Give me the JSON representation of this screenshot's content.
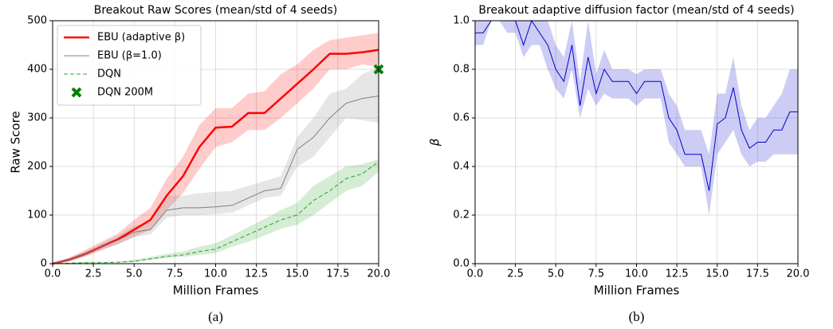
{
  "chart_data": [
    {
      "type": "line",
      "title": "Breakout Raw Scores (mean/std of 4 seeds)",
      "xlabel": "Million Frames",
      "ylabel": "Raw Score",
      "caption": "(a)",
      "x": [
        0,
        1,
        2,
        3,
        4,
        5,
        6,
        7,
        8,
        9,
        10,
        11,
        12,
        13,
        14,
        15,
        16,
        17,
        18,
        19,
        20
      ],
      "series": [
        {
          "name": "EBU (adaptive β)",
          "color": "#ff0000",
          "linewidth": 2.5,
          "linestyle": "solid",
          "values": [
            0,
            8,
            20,
            35,
            50,
            70,
            90,
            140,
            180,
            240,
            280,
            282,
            310,
            310,
            340,
            370,
            400,
            432,
            432,
            435,
            440
          ],
          "lower": [
            0,
            5,
            15,
            28,
            40,
            55,
            70,
            110,
            145,
            195,
            240,
            250,
            275,
            275,
            300,
            330,
            360,
            400,
            400,
            410,
            405
          ],
          "upper": [
            0,
            12,
            28,
            45,
            62,
            90,
            115,
            175,
            220,
            285,
            320,
            320,
            350,
            355,
            390,
            410,
            440,
            460,
            465,
            470,
            475
          ]
        },
        {
          "name": "EBU (β=1.0)",
          "color": "#808080",
          "linewidth": 1,
          "linestyle": "solid",
          "values": [
            0,
            8,
            20,
            35,
            48,
            65,
            70,
            110,
            115,
            115,
            117,
            120,
            135,
            150,
            155,
            235,
            260,
            300,
            330,
            340,
            345
          ],
          "lower": [
            0,
            5,
            15,
            28,
            40,
            55,
            60,
            95,
            100,
            100,
            102,
            105,
            120,
            135,
            140,
            200,
            220,
            260,
            300,
            295,
            290
          ],
          "upper": [
            0,
            12,
            25,
            42,
            58,
            78,
            85,
            140,
            140,
            145,
            148,
            150,
            160,
            170,
            180,
            260,
            300,
            350,
            360,
            390,
            405
          ]
        },
        {
          "name": "DQN",
          "color": "#2ca02c",
          "linewidth": 1,
          "linestyle": "dashed",
          "values": [
            0,
            1,
            2,
            2,
            3,
            5,
            10,
            15,
            18,
            25,
            30,
            45,
            60,
            75,
            90,
            100,
            130,
            150,
            175,
            185,
            210
          ],
          "lower": [
            0,
            0,
            1,
            1,
            2,
            3,
            7,
            12,
            14,
            18,
            22,
            35,
            45,
            58,
            72,
            80,
            100,
            125,
            150,
            160,
            190
          ],
          "upper": [
            0,
            2,
            3,
            3,
            4,
            8,
            14,
            20,
            25,
            35,
            42,
            58,
            75,
            92,
            110,
            125,
            160,
            180,
            200,
            205,
            215
          ]
        },
        {
          "name": "DQN 200M",
          "color": "#008000",
          "marker": "X",
          "x": [
            20
          ],
          "values": [
            400
          ]
        }
      ],
      "xlim": [
        0,
        20
      ],
      "ylim": [
        0,
        500
      ],
      "xticks": [
        {
          "value": 0,
          "label": "0.0"
        },
        2.5,
        {
          "value": 5,
          "label": "5.0"
        },
        7.5,
        {
          "value": 10,
          "label": "10.0"
        },
        12.5,
        {
          "value": 15,
          "label": "15.0"
        },
        17.5,
        {
          "value": 20,
          "label": "20.0"
        }
      ],
      "yticks": [
        0,
        100,
        200,
        300,
        400,
        500
      ],
      "grid": true,
      "legend": "upper left"
    },
    {
      "type": "line",
      "title": "Breakout adaptive diffusion factor (mean/std of 4 seeds)",
      "xlabel": "Million Frames",
      "ylabel": "β",
      "caption": "(b)",
      "x": [
        0,
        0.5,
        1,
        1.5,
        2,
        2.5,
        3,
        3.5,
        4,
        4.5,
        5,
        5.5,
        6,
        6.5,
        7,
        7.5,
        8,
        8.5,
        9,
        9.5,
        10,
        10.5,
        11,
        11.5,
        12,
        12.5,
        13,
        13.5,
        14,
        14.5,
        15,
        15.5,
        16,
        16.5,
        17,
        17.5,
        18,
        18.5,
        19,
        19.5,
        20
      ],
      "series": [
        {
          "color": "#0000cc",
          "linewidth": 1,
          "linestyle": "solid",
          "values": [
            0.95,
            0.95,
            1.0,
            1.0,
            1.0,
            1.0,
            0.9,
            1.0,
            0.95,
            0.9,
            0.8,
            0.75,
            0.9,
            0.65,
            0.85,
            0.7,
            0.8,
            0.75,
            0.75,
            0.75,
            0.7,
            0.75,
            0.75,
            0.75,
            0.6,
            0.55,
            0.45,
            0.45,
            0.45,
            0.3,
            0.575,
            0.6,
            0.725,
            0.55,
            0.475,
            0.5,
            0.5,
            0.55,
            0.55,
            0.625,
            0.625
          ],
          "lower": [
            0.9,
            0.9,
            1.0,
            1.0,
            0.95,
            0.95,
            0.85,
            0.9,
            0.9,
            0.8,
            0.72,
            0.68,
            0.8,
            0.6,
            0.72,
            0.65,
            0.7,
            0.68,
            0.68,
            0.68,
            0.65,
            0.68,
            0.68,
            0.68,
            0.5,
            0.45,
            0.4,
            0.4,
            0.4,
            0.2,
            0.45,
            0.5,
            0.55,
            0.45,
            0.4,
            0.42,
            0.42,
            0.45,
            0.45,
            0.45,
            0.45
          ],
          "upper": [
            1.0,
            1.0,
            1.0,
            1.0,
            1.0,
            1.0,
            1.0,
            1.0,
            1.0,
            1.0,
            0.9,
            0.85,
            1.0,
            0.75,
            1.0,
            0.78,
            0.88,
            0.8,
            0.8,
            0.8,
            0.78,
            0.8,
            0.8,
            0.8,
            0.7,
            0.65,
            0.55,
            0.55,
            0.55,
            0.45,
            0.7,
            0.7,
            0.85,
            0.65,
            0.55,
            0.6,
            0.6,
            0.65,
            0.7,
            0.8,
            0.8
          ]
        }
      ],
      "xlim": [
        0,
        20
      ],
      "ylim": [
        0,
        1
      ],
      "xticks": [
        {
          "value": 0,
          "label": "0.0"
        },
        2.5,
        {
          "value": 5,
          "label": "5.0"
        },
        7.5,
        {
          "value": 10,
          "label": "10.0"
        },
        12.5,
        {
          "value": 15,
          "label": "15.0"
        },
        17.5,
        {
          "value": 20,
          "label": "20.0"
        }
      ],
      "yticks": [
        {
          "value": 0,
          "label": "0.0"
        },
        0.2,
        0.4,
        0.6,
        0.8,
        {
          "value": 1,
          "label": "1.0"
        }
      ],
      "grid": true
    }
  ]
}
